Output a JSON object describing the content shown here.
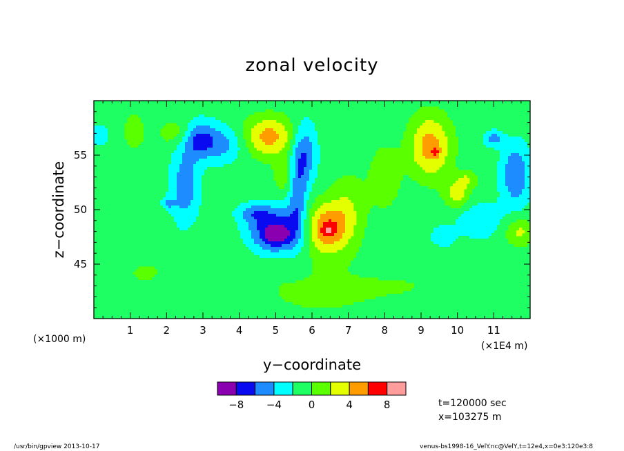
{
  "chart_data": {
    "type": "heatmap",
    "title": "zonal velocity",
    "xlabel": "y−coordinate",
    "ylabel": "z−coordinate",
    "x_unit_label": "(×1E4 m)",
    "y_unit_label": "(×1000 m)",
    "x_ticks": [
      1,
      2,
      3,
      4,
      5,
      6,
      7,
      8,
      9,
      10,
      11
    ],
    "x_tick_labels": [
      "1",
      "2",
      "3",
      "4",
      "5",
      "6",
      "7",
      "8",
      "9",
      "10",
      "11"
    ],
    "y_ticks": [
      45,
      50,
      55
    ],
    "y_tick_labels": [
      "45",
      "50",
      "55"
    ],
    "xlim": [
      0,
      12
    ],
    "ylim": [
      40,
      60
    ],
    "colorbar": {
      "levels": [
        -10,
        -8,
        -6,
        -4,
        -2,
        0,
        2,
        4,
        6,
        8,
        10
      ],
      "tick_values": [
        -8,
        -4,
        0,
        4,
        8
      ],
      "tick_labels": [
        "−8",
        "−4",
        "0",
        "4",
        "8"
      ],
      "colors": [
        "#8a00b0",
        "#0a0af0",
        "#1c8cff",
        "#00ffff",
        "#1eff64",
        "#5aff00",
        "#e4ff00",
        "#ff9c00",
        "#ff0000",
        "#ff9c9c"
      ]
    },
    "background_value": -1,
    "features": [
      {
        "y": 4.98,
        "z": 48.0,
        "sy": 0.55,
        "sz": 1.5,
        "amp": -7.5
      },
      {
        "y": 5.05,
        "z": 47.6,
        "sy": 0.22,
        "sz": 0.55,
        "amp": -3
      },
      {
        "y": 5.6,
        "z": 52.0,
        "sy": 0.18,
        "sz": 3.0,
        "amp": -5
      },
      {
        "y": 5.85,
        "z": 55.2,
        "sy": 0.22,
        "sz": 2.0,
        "amp": -4
      },
      {
        "y": 4.4,
        "z": 49.7,
        "sy": 0.35,
        "sz": 0.6,
        "amp": -3
      },
      {
        "y": 6.4,
        "z": 48.3,
        "sy": 0.42,
        "sz": 1.6,
        "amp": 7
      },
      {
        "y": 6.45,
        "z": 48.1,
        "sy": 0.12,
        "sz": 0.35,
        "amp": 3
      },
      {
        "y": 7.0,
        "z": 50.2,
        "sy": 0.35,
        "sz": 2.2,
        "amp": 2.5
      },
      {
        "y": 4.8,
        "z": 56.7,
        "sy": 0.5,
        "sz": 1.3,
        "amp": 5.8
      },
      {
        "y": 5.3,
        "z": 53.0,
        "sy": 0.25,
        "sz": 1.2,
        "amp": 2.5
      },
      {
        "y": 2.9,
        "z": 56.4,
        "sy": 0.32,
        "sz": 1.2,
        "amp": -5.5
      },
      {
        "y": 2.5,
        "z": 52.0,
        "sy": 0.28,
        "sz": 2.6,
        "amp": -4.2
      },
      {
        "y": 2.05,
        "z": 50.6,
        "sy": 0.12,
        "sz": 0.4,
        "amp": -3
      },
      {
        "y": 3.6,
        "z": 56.0,
        "sy": 0.4,
        "sz": 1.2,
        "amp": -3.5
      },
      {
        "y": 2.3,
        "z": 57.0,
        "sy": 0.35,
        "sz": 0.9,
        "amp": 2.5
      },
      {
        "y": 1.1,
        "z": 57.2,
        "sy": 0.22,
        "sz": 1.2,
        "amp": 2.2
      },
      {
        "y": 0.15,
        "z": 56.8,
        "sy": 0.18,
        "sz": 0.6,
        "amp": -3
      },
      {
        "y": 9.25,
        "z": 55.8,
        "sy": 0.4,
        "sz": 2.0,
        "amp": 6
      },
      {
        "y": 9.4,
        "z": 55.3,
        "sy": 0.08,
        "sz": 0.3,
        "amp": 3
      },
      {
        "y": 8.0,
        "z": 53.0,
        "sy": 0.3,
        "sz": 2.0,
        "amp": 2.5
      },
      {
        "y": 10.0,
        "z": 51.5,
        "sy": 0.25,
        "sz": 1.0,
        "amp": 4
      },
      {
        "y": 10.3,
        "z": 52.8,
        "sy": 0.2,
        "sz": 0.5,
        "amp": 2.5
      },
      {
        "y": 11.6,
        "z": 53.2,
        "sy": 0.28,
        "sz": 2.0,
        "amp": -5
      },
      {
        "y": 11.0,
        "z": 56.5,
        "sy": 0.18,
        "sz": 0.5,
        "amp": -4
      },
      {
        "y": 10.6,
        "z": 49.0,
        "sy": 0.45,
        "sz": 1.2,
        "amp": -2.8
      },
      {
        "y": 11.7,
        "z": 48.0,
        "sy": 0.28,
        "sz": 0.9,
        "amp": 3.5
      },
      {
        "y": 9.6,
        "z": 47.5,
        "sy": 0.25,
        "sz": 0.7,
        "amp": -2.5
      },
      {
        "y": 4.0,
        "z": 45.5,
        "sy": 1.5,
        "sz": 2.5,
        "amp": 0.8
      },
      {
        "y": 8.5,
        "z": 43.0,
        "sy": 1.8,
        "sz": 2.0,
        "amp": 1.0
      },
      {
        "y": 1.2,
        "z": 44.0,
        "sy": 1.0,
        "sz": 2.5,
        "amp": 0.9
      },
      {
        "y": 6.0,
        "z": 42.0,
        "sy": 1.0,
        "sz": 1.5,
        "amp": 0.9
      }
    ]
  },
  "info": {
    "time_label": "t=120000 sec",
    "position_label": "x=103275 m"
  },
  "footer": {
    "left": "/usr/bin/gpview  2013-10-17",
    "right": "venus-bs1998-16_VelY.nc@VelY,t=12e4,x=0e3:120e3:8"
  }
}
